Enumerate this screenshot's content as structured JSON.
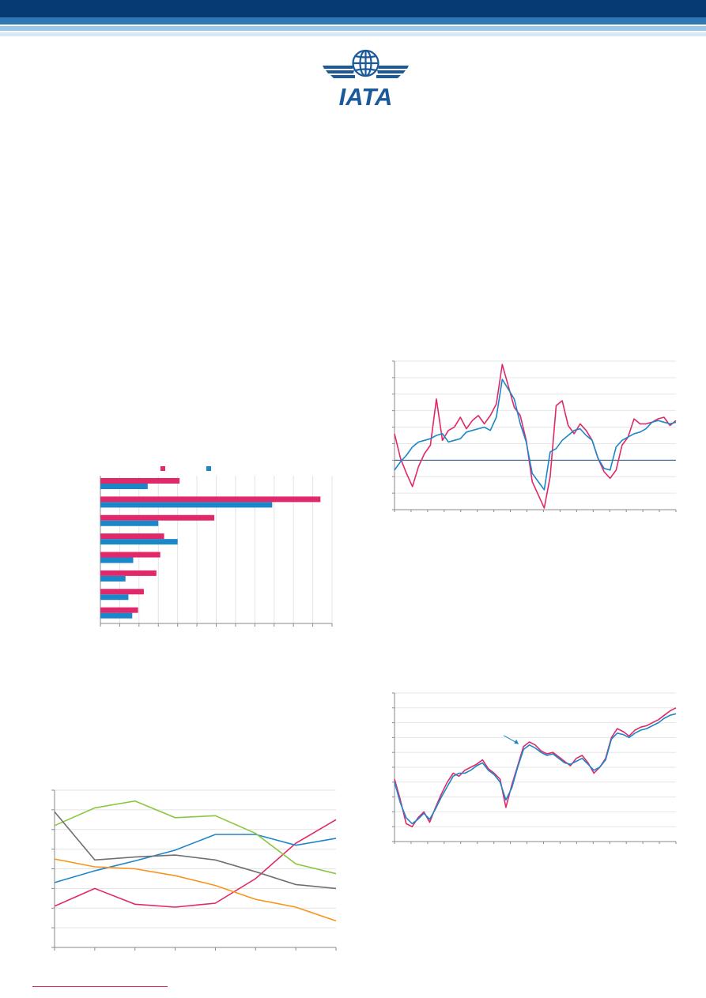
{
  "header": {
    "logo_text": "IATA",
    "colors": {
      "navy": "#063a73",
      "mid_blue": "#2f76b6",
      "light_blue": "#9cc7e8",
      "pale_blue": "#d7e8f6"
    }
  },
  "colors": {
    "pink": "#e0286a",
    "blue": "#1b87c9",
    "green": "#8cc63f",
    "gray": "#707070",
    "orange": "#f7941d"
  },
  "charts": {
    "bar": {
      "legend": [
        {
          "color": "#e0286a"
        },
        {
          "color": "#1b87c9"
        }
      ],
      "gridlines": 12
    },
    "line": {
      "y_gridlines": 8,
      "x_ticks": 7
    },
    "top_right": {
      "y_gridlines": 9
    },
    "bottom_right": {
      "y_gridlines": 10
    }
  },
  "chart_data": [
    {
      "type": "bar",
      "orientation": "horizontal",
      "categories": [
        "",
        "",
        "",
        "",
        "",
        "",
        "",
        ""
      ],
      "series": [
        {
          "color": "#e0286a",
          "values": [
            4.1,
            11.4,
            5.9,
            3.3,
            3.1,
            2.9,
            2.25,
            1.95
          ]
        },
        {
          "color": "#1b87c9",
          "values": [
            2.45,
            8.9,
            3.0,
            4.0,
            1.7,
            1.3,
            1.45,
            1.65
          ]
        }
      ],
      "xlim": [
        0,
        12
      ]
    },
    {
      "type": "line",
      "x": [
        0,
        1,
        2,
        3,
        4,
        5,
        6,
        7
      ],
      "ylim": [
        0,
        8
      ],
      "series": [
        {
          "color": "#e0286a",
          "values": [
            2.1,
            3.0,
            2.2,
            2.05,
            2.25,
            3.5,
            5.3,
            6.5
          ]
        },
        {
          "color": "#1b87c9",
          "values": [
            3.3,
            3.9,
            4.4,
            4.95,
            5.75,
            5.75,
            5.2,
            5.55
          ]
        },
        {
          "color": "#8cc63f",
          "values": [
            6.2,
            7.1,
            7.45,
            6.6,
            6.7,
            5.8,
            4.25,
            3.75
          ]
        },
        {
          "color": "#707070",
          "values": [
            6.9,
            4.45,
            4.6,
            4.7,
            4.45,
            3.85,
            3.2,
            3.0
          ]
        },
        {
          "color": "#f7941d",
          "values": [
            4.5,
            4.1,
            4.0,
            3.65,
            3.15,
            2.45,
            2.05,
            1.35
          ]
        }
      ]
    },
    {
      "type": "line",
      "ylim": [
        -3,
        6
      ],
      "zero_line": 0,
      "series": [
        {
          "color": "#e0286a",
          "values": [
            1.6,
            0.1,
            -0.8,
            -1.6,
            -0.4,
            0.4,
            0.9,
            3.7,
            1.2,
            1.8,
            2.0,
            2.6,
            1.9,
            2.4,
            2.7,
            2.2,
            2.7,
            3.4,
            5.8,
            4.5,
            3.2,
            2.7,
            1.2,
            -1.3,
            -2.1,
            -2.9,
            -1.0,
            3.3,
            3.6,
            2.1,
            1.6,
            2.2,
            1.8,
            1.2,
            0.1,
            -0.7,
            -1.1,
            -0.6,
            0.9,
            1.4,
            2.5,
            2.2,
            2.2,
            2.3,
            2.5,
            2.6,
            2.1,
            2.4
          ]
        },
        {
          "color": "#1b87c9",
          "values": [
            -0.6,
            -0.1,
            0.3,
            0.8,
            1.1,
            1.2,
            1.3,
            1.5,
            1.6,
            1.1,
            1.2,
            1.3,
            1.7,
            1.8,
            1.9,
            2.0,
            1.8,
            2.6,
            4.9,
            4.3,
            3.7,
            2.2,
            1.1,
            -0.8,
            -1.3,
            -1.8,
            0.5,
            0.7,
            1.2,
            1.5,
            1.8,
            1.9,
            1.5,
            1.2,
            0.1,
            -0.5,
            -0.6,
            0.8,
            1.2,
            1.4,
            1.6,
            1.7,
            1.9,
            2.3,
            2.4,
            2.3,
            2.2,
            2.3
          ]
        }
      ]
    },
    {
      "type": "line",
      "ylim": [
        0,
        10
      ],
      "series": [
        {
          "color": "#e0286a",
          "values": [
            4.2,
            2.8,
            1.2,
            1.0,
            1.6,
            2.0,
            1.3,
            2.3,
            3.2,
            4.0,
            4.6,
            4.4,
            4.8,
            5.0,
            5.2,
            5.5,
            4.9,
            4.6,
            4.2,
            2.3,
            3.8,
            5.1,
            6.4,
            6.7,
            6.5,
            6.1,
            5.9,
            6.0,
            5.7,
            5.4,
            5.1,
            5.6,
            5.8,
            5.3,
            4.6,
            5.0,
            5.6,
            7.0,
            7.6,
            7.4,
            7.1,
            7.5,
            7.7,
            7.8,
            8.0,
            8.2,
            8.5,
            8.8,
            9.0
          ]
        },
        {
          "color": "#1b87c9",
          "values": [
            4.0,
            2.6,
            1.6,
            1.2,
            1.5,
            1.9,
            1.5,
            2.2,
            3.0,
            3.7,
            4.4,
            4.6,
            4.6,
            4.8,
            5.1,
            5.3,
            4.8,
            4.5,
            4.0,
            2.8,
            3.6,
            5.0,
            6.2,
            6.5,
            6.3,
            6.0,
            5.8,
            5.9,
            5.6,
            5.3,
            5.2,
            5.4,
            5.6,
            5.2,
            4.8,
            5.0,
            5.5,
            6.9,
            7.3,
            7.2,
            7.0,
            7.3,
            7.5,
            7.6,
            7.8,
            8.0,
            8.3,
            8.5,
            8.6
          ]
        }
      ]
    }
  ]
}
